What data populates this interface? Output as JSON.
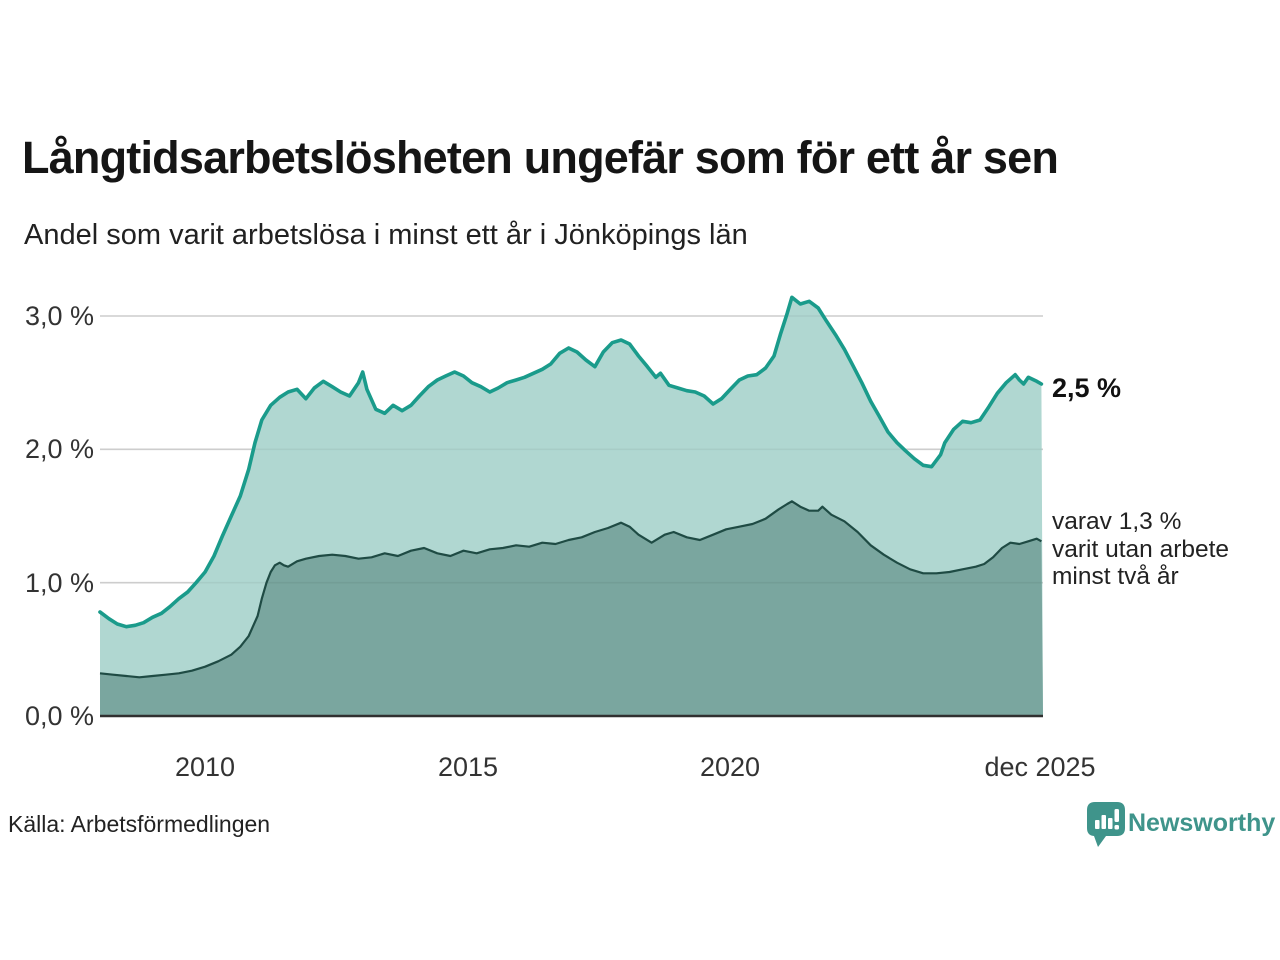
{
  "header": {
    "title": "Långtidsarbetslösheten ungefär som för ett år sen",
    "subtitle": "Andel som varit arbetslösa i minst ett år i Jönköpings län"
  },
  "colors": {
    "total_line": "#1a9b8b",
    "total_fill": "#b0d7d1",
    "two_year_line": "#1f4b44",
    "two_year_fill": "#7aa69f",
    "gridline": "#d8d8d8",
    "axis_line": "#303030",
    "brand": "#3f948b"
  },
  "chart_data": {
    "type": "area",
    "title": "Långtidsarbetslösheten ungefär som för ett år sen",
    "subtitle": "Andel som varit arbetslösa i minst ett år i Jönköpings län",
    "xlabel": "",
    "ylabel": "",
    "grid": true,
    "legend_position": "line-end-annotations",
    "x_range": [
      2008.0,
      2025.95
    ],
    "ylim": [
      0,
      3.2
    ],
    "y_axis": {
      "ticks": [
        {
          "label": "0,0 %",
          "value": 0.0
        },
        {
          "label": "1,0 %",
          "value": 1.0
        },
        {
          "label": "2,0 %",
          "value": 2.0
        },
        {
          "label": "3,0 %",
          "value": 3.0
        }
      ]
    },
    "x_axis": {
      "ticks": [
        {
          "label": "2010",
          "value": 2010
        },
        {
          "label": "2015",
          "value": 2015
        },
        {
          "label": "2020",
          "value": 2020
        },
        {
          "label": "dec 2025",
          "value": 2025.92
        }
      ]
    },
    "series": [
      {
        "id": "unemployed-min-one-year",
        "end_value": 2.5,
        "end_label": "2,5 %",
        "line_color": "#1a9b8b",
        "fill_color": "#b0d7d1",
        "points": [
          [
            2008.0,
            0.78
          ],
          [
            2008.17,
            0.73
          ],
          [
            2008.33,
            0.69
          ],
          [
            2008.5,
            0.67
          ],
          [
            2008.67,
            0.68
          ],
          [
            2008.83,
            0.7
          ],
          [
            2009.0,
            0.74
          ],
          [
            2009.17,
            0.77
          ],
          [
            2009.33,
            0.82
          ],
          [
            2009.5,
            0.88
          ],
          [
            2009.67,
            0.93
          ],
          [
            2009.83,
            1.0
          ],
          [
            2010.0,
            1.08
          ],
          [
            2010.17,
            1.2
          ],
          [
            2010.33,
            1.35
          ],
          [
            2010.5,
            1.5
          ],
          [
            2010.67,
            1.65
          ],
          [
            2010.83,
            1.85
          ],
          [
            2010.95,
            2.05
          ],
          [
            2011.08,
            2.22
          ],
          [
            2011.25,
            2.33
          ],
          [
            2011.42,
            2.39
          ],
          [
            2011.58,
            2.43
          ],
          [
            2011.75,
            2.45
          ],
          [
            2011.92,
            2.38
          ],
          [
            2012.08,
            2.46
          ],
          [
            2012.25,
            2.51
          ],
          [
            2012.42,
            2.47
          ],
          [
            2012.58,
            2.43
          ],
          [
            2012.75,
            2.4
          ],
          [
            2012.92,
            2.5
          ],
          [
            2013.0,
            2.58
          ],
          [
            2013.08,
            2.45
          ],
          [
            2013.25,
            2.3
          ],
          [
            2013.42,
            2.27
          ],
          [
            2013.58,
            2.33
          ],
          [
            2013.75,
            2.29
          ],
          [
            2013.92,
            2.33
          ],
          [
            2014.08,
            2.4
          ],
          [
            2014.25,
            2.47
          ],
          [
            2014.42,
            2.52
          ],
          [
            2014.58,
            2.55
          ],
          [
            2014.75,
            2.58
          ],
          [
            2014.92,
            2.55
          ],
          [
            2015.08,
            2.5
          ],
          [
            2015.25,
            2.47
          ],
          [
            2015.42,
            2.43
          ],
          [
            2015.58,
            2.46
          ],
          [
            2015.75,
            2.5
          ],
          [
            2015.92,
            2.52
          ],
          [
            2016.08,
            2.54
          ],
          [
            2016.25,
            2.57
          ],
          [
            2016.42,
            2.6
          ],
          [
            2016.58,
            2.64
          ],
          [
            2016.75,
            2.72
          ],
          [
            2016.92,
            2.76
          ],
          [
            2017.08,
            2.73
          ],
          [
            2017.25,
            2.67
          ],
          [
            2017.42,
            2.62
          ],
          [
            2017.58,
            2.73
          ],
          [
            2017.75,
            2.8
          ],
          [
            2017.92,
            2.82
          ],
          [
            2018.08,
            2.79
          ],
          [
            2018.25,
            2.7
          ],
          [
            2018.42,
            2.62
          ],
          [
            2018.58,
            2.54
          ],
          [
            2018.67,
            2.57
          ],
          [
            2018.83,
            2.48
          ],
          [
            2019.0,
            2.46
          ],
          [
            2019.17,
            2.44
          ],
          [
            2019.33,
            2.43
          ],
          [
            2019.5,
            2.4
          ],
          [
            2019.67,
            2.34
          ],
          [
            2019.83,
            2.38
          ],
          [
            2020.0,
            2.45
          ],
          [
            2020.17,
            2.52
          ],
          [
            2020.33,
            2.55
          ],
          [
            2020.5,
            2.56
          ],
          [
            2020.67,
            2.61
          ],
          [
            2020.83,
            2.7
          ],
          [
            2020.95,
            2.86
          ],
          [
            2021.08,
            3.02
          ],
          [
            2021.17,
            3.14
          ],
          [
            2021.33,
            3.09
          ],
          [
            2021.5,
            3.11
          ],
          [
            2021.67,
            3.06
          ],
          [
            2021.83,
            2.96
          ],
          [
            2022.0,
            2.86
          ],
          [
            2022.17,
            2.75
          ],
          [
            2022.33,
            2.63
          ],
          [
            2022.5,
            2.5
          ],
          [
            2022.67,
            2.36
          ],
          [
            2022.83,
            2.25
          ],
          [
            2023.0,
            2.13
          ],
          [
            2023.17,
            2.05
          ],
          [
            2023.33,
            1.99
          ],
          [
            2023.5,
            1.93
          ],
          [
            2023.67,
            1.88
          ],
          [
            2023.83,
            1.87
          ],
          [
            2024.0,
            1.96
          ],
          [
            2024.08,
            2.05
          ],
          [
            2024.25,
            2.15
          ],
          [
            2024.42,
            2.21
          ],
          [
            2024.58,
            2.2
          ],
          [
            2024.75,
            2.22
          ],
          [
            2024.92,
            2.32
          ],
          [
            2025.08,
            2.42
          ],
          [
            2025.25,
            2.5
          ],
          [
            2025.42,
            2.56
          ],
          [
            2025.5,
            2.52
          ],
          [
            2025.58,
            2.49
          ],
          [
            2025.67,
            2.54
          ],
          [
            2025.83,
            2.51
          ],
          [
            2025.92,
            2.49
          ]
        ]
      },
      {
        "id": "unemployed-min-two-years",
        "end_value": 1.3,
        "end_label": "varav 1,3 % varit utan arbete minst två år",
        "line_color": "#1f4b44",
        "fill_color": "#7aa69f",
        "points": [
          [
            2008.0,
            0.32
          ],
          [
            2008.25,
            0.31
          ],
          [
            2008.5,
            0.3
          ],
          [
            2008.75,
            0.29
          ],
          [
            2009.0,
            0.3
          ],
          [
            2009.25,
            0.31
          ],
          [
            2009.5,
            0.32
          ],
          [
            2009.75,
            0.34
          ],
          [
            2010.0,
            0.37
          ],
          [
            2010.25,
            0.41
          ],
          [
            2010.5,
            0.46
          ],
          [
            2010.67,
            0.52
          ],
          [
            2010.83,
            0.6
          ],
          [
            2011.0,
            0.75
          ],
          [
            2011.08,
            0.88
          ],
          [
            2011.17,
            1.0
          ],
          [
            2011.25,
            1.08
          ],
          [
            2011.33,
            1.13
          ],
          [
            2011.42,
            1.15
          ],
          [
            2011.5,
            1.13
          ],
          [
            2011.58,
            1.12
          ],
          [
            2011.75,
            1.16
          ],
          [
            2011.92,
            1.18
          ],
          [
            2012.17,
            1.2
          ],
          [
            2012.42,
            1.21
          ],
          [
            2012.67,
            1.2
          ],
          [
            2012.92,
            1.18
          ],
          [
            2013.17,
            1.19
          ],
          [
            2013.42,
            1.22
          ],
          [
            2013.67,
            1.2
          ],
          [
            2013.92,
            1.24
          ],
          [
            2014.17,
            1.26
          ],
          [
            2014.42,
            1.22
          ],
          [
            2014.67,
            1.2
          ],
          [
            2014.92,
            1.24
          ],
          [
            2015.17,
            1.22
          ],
          [
            2015.42,
            1.25
          ],
          [
            2015.67,
            1.26
          ],
          [
            2015.92,
            1.28
          ],
          [
            2016.17,
            1.27
          ],
          [
            2016.42,
            1.3
          ],
          [
            2016.67,
            1.29
          ],
          [
            2016.92,
            1.32
          ],
          [
            2017.17,
            1.34
          ],
          [
            2017.42,
            1.38
          ],
          [
            2017.67,
            1.41
          ],
          [
            2017.92,
            1.45
          ],
          [
            2018.08,
            1.42
          ],
          [
            2018.25,
            1.36
          ],
          [
            2018.5,
            1.3
          ],
          [
            2018.75,
            1.36
          ],
          [
            2018.92,
            1.38
          ],
          [
            2019.17,
            1.34
          ],
          [
            2019.42,
            1.32
          ],
          [
            2019.67,
            1.36
          ],
          [
            2019.92,
            1.4
          ],
          [
            2020.17,
            1.42
          ],
          [
            2020.42,
            1.44
          ],
          [
            2020.67,
            1.48
          ],
          [
            2020.92,
            1.55
          ],
          [
            2021.08,
            1.59
          ],
          [
            2021.17,
            1.61
          ],
          [
            2021.33,
            1.57
          ],
          [
            2021.5,
            1.54
          ],
          [
            2021.67,
            1.54
          ],
          [
            2021.75,
            1.57
          ],
          [
            2021.92,
            1.51
          ],
          [
            2022.17,
            1.46
          ],
          [
            2022.42,
            1.38
          ],
          [
            2022.67,
            1.28
          ],
          [
            2022.92,
            1.21
          ],
          [
            2023.17,
            1.15
          ],
          [
            2023.42,
            1.1
          ],
          [
            2023.67,
            1.07
          ],
          [
            2023.92,
            1.07
          ],
          [
            2024.17,
            1.08
          ],
          [
            2024.42,
            1.1
          ],
          [
            2024.67,
            1.12
          ],
          [
            2024.83,
            1.14
          ],
          [
            2025.0,
            1.19
          ],
          [
            2025.17,
            1.26
          ],
          [
            2025.33,
            1.3
          ],
          [
            2025.5,
            1.29
          ],
          [
            2025.67,
            1.31
          ],
          [
            2025.83,
            1.33
          ],
          [
            2025.92,
            1.31
          ]
        ]
      }
    ]
  },
  "annotations": {
    "total_label": "2,5 %",
    "breakdown": {
      "lines": [
        "varav 1,3 %",
        "varit utan arbete",
        "minst två år"
      ]
    }
  },
  "footer": {
    "source": "Källa: Arbetsförmedlingen",
    "brand": "Newsworthy"
  }
}
